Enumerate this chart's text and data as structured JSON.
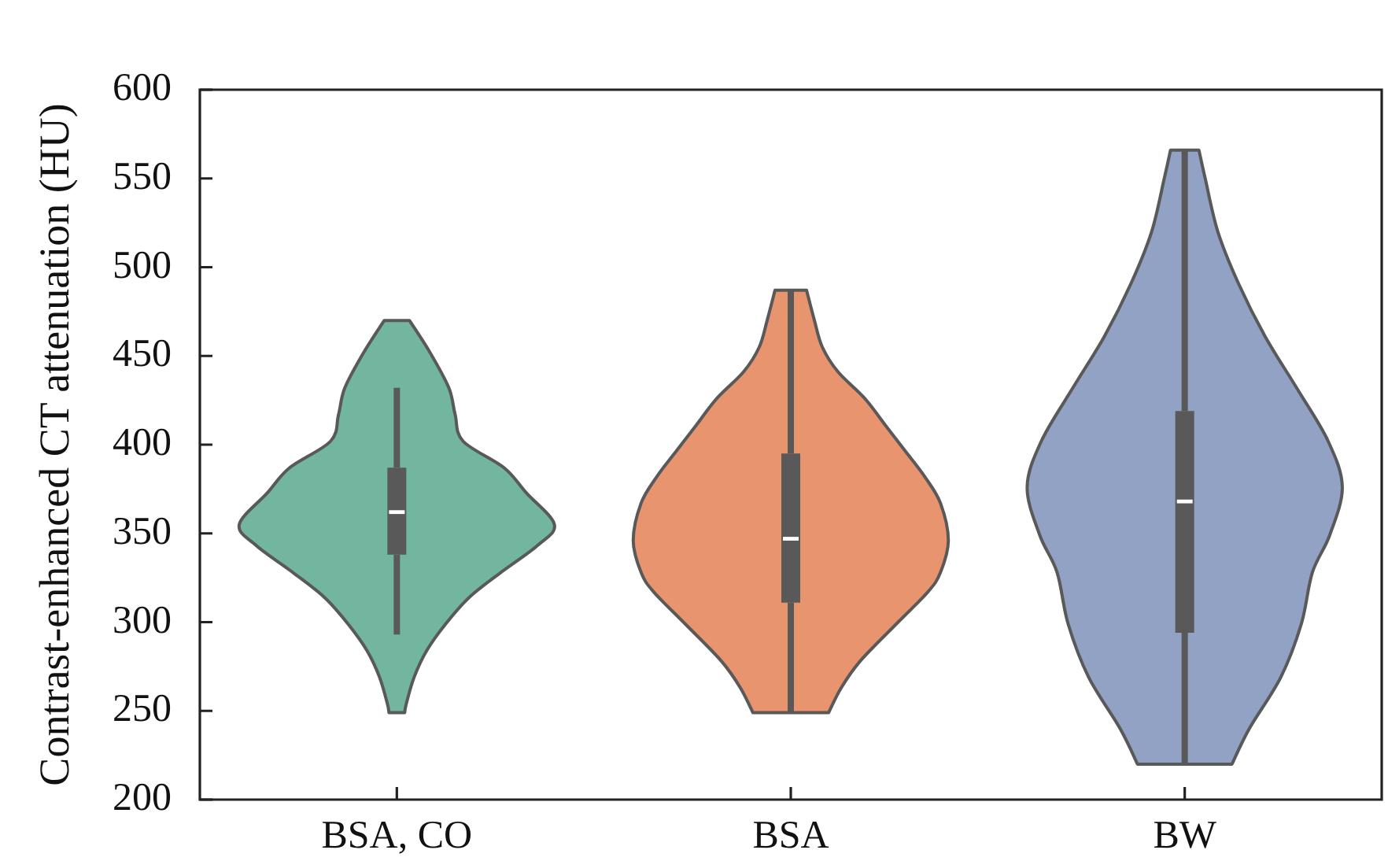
{
  "chart_data": {
    "type": "box",
    "ylabel": "Contrast-enhanced CT attenuation (HU)",
    "categories": [
      "BSA, CO",
      "BSA",
      "BW"
    ],
    "color": "#595959",
    "boxes": [
      {
        "low": 293,
        "q1": 338,
        "median": 362,
        "q3": 387,
        "high": 432
      },
      {
        "low": 249,
        "q1": 311,
        "median": 347,
        "q3": 395,
        "high": 487
      },
      {
        "low": 220,
        "q1": 294,
        "median": 368,
        "q3": 419,
        "high": 566
      }
    ],
    "ylim": [
      200,
      600
    ],
    "yticks": [
      200,
      250,
      300,
      350,
      400,
      450,
      500,
      550,
      600
    ]
  }
}
